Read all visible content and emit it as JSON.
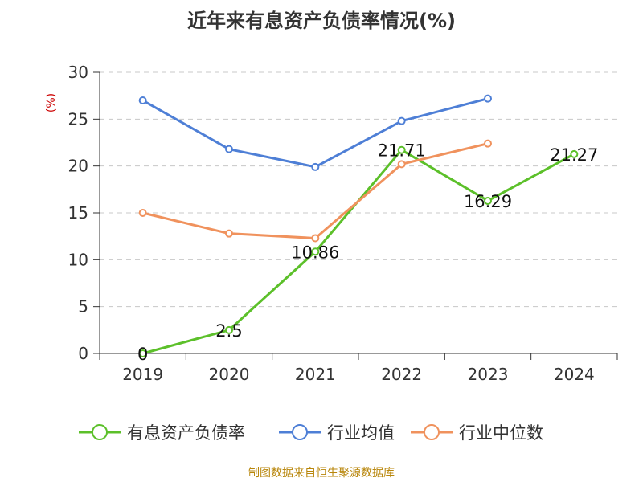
{
  "title": "近年来有息资产负债率情况(%)",
  "source": "制图数据来自恒生聚源数据库",
  "chart_data": {
    "type": "line",
    "title": "近年来有息资产负债率情况(%)",
    "ylabel": "(%)",
    "xlabel": "",
    "categories": [
      "2019",
      "2020",
      "2021",
      "2022",
      "2023",
      "2024"
    ],
    "ylim": [
      0,
      30
    ],
    "yticks": [
      0,
      5,
      10,
      15,
      20,
      25,
      30
    ],
    "grid": true,
    "legend_position": "bottom",
    "series": [
      {
        "name": "有息资产负债率",
        "color": "#5cc02a",
        "values": [
          0,
          2.5,
          10.86,
          21.71,
          16.29,
          21.27
        ],
        "labels": [
          "0",
          "2.5",
          "10.86",
          "21.71",
          "16.29",
          "21.27"
        ]
      },
      {
        "name": "行业均值",
        "color": "#4e7fd6",
        "values": [
          27.0,
          21.8,
          19.9,
          24.8,
          27.2,
          null
        ]
      },
      {
        "name": "行业中位数",
        "color": "#f0925d",
        "values": [
          15.0,
          12.8,
          12.3,
          20.2,
          22.4,
          null
        ]
      }
    ]
  }
}
